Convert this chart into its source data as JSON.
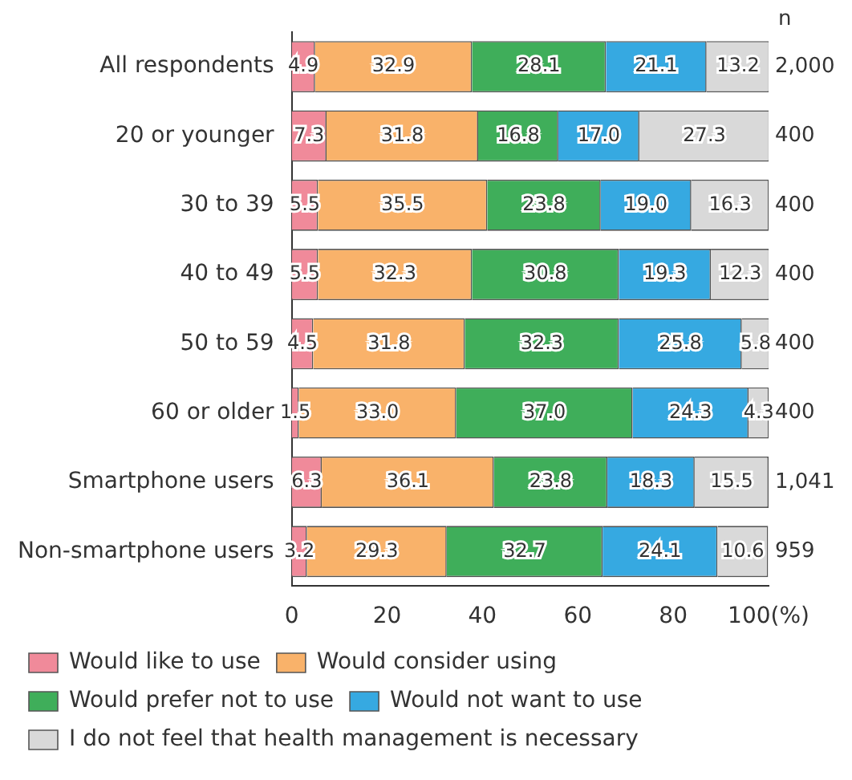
{
  "chart_data": {
    "type": "bar",
    "orientation": "horizontal",
    "stacked": true,
    "categories": [
      "All respondents",
      "20 or younger",
      "30 to 39",
      "40 to 49",
      "50 to 59",
      "60 or older",
      "Smartphone users",
      "Non-smartphone users"
    ],
    "series": [
      {
        "name": "Would like to use",
        "color": "#f08a9a",
        "values": [
          4.9,
          7.3,
          5.5,
          5.5,
          4.5,
          1.5,
          6.3,
          3.2
        ],
        "value_labels": [
          "4.9",
          "7.3",
          "5.5",
          "5.5",
          "4.5",
          "1.5",
          "6.3",
          "3.2"
        ]
      },
      {
        "name": "Would consider using",
        "color": "#f9b26a",
        "values": [
          32.9,
          31.8,
          35.5,
          32.3,
          31.8,
          33.0,
          36.1,
          29.3
        ],
        "value_labels": [
          "32.9",
          "31.8",
          "35.5",
          "32.3",
          "31.8",
          "33.0",
          "36.1",
          "29.3"
        ]
      },
      {
        "name": "Would prefer not to use",
        "color": "#3fae5a",
        "values": [
          28.1,
          16.8,
          23.8,
          30.8,
          32.3,
          37.0,
          23.8,
          32.7
        ],
        "value_labels": [
          "28.1",
          "16.8",
          "23.8",
          "30.8",
          "32.3",
          "37.0",
          "23.8",
          "32.7"
        ]
      },
      {
        "name": "Would not want to use",
        "color": "#36a9e1",
        "values": [
          21.1,
          17.0,
          19.0,
          19.3,
          25.8,
          24.3,
          18.3,
          24.1
        ],
        "value_labels": [
          "21.1",
          "17.0",
          "19.0",
          "19.3",
          "25.8",
          "24.3",
          "18.3",
          "24.1"
        ]
      },
      {
        "name": "I do not feel that health management is necessary",
        "color": "#d9d9d9",
        "values": [
          13.2,
          27.3,
          16.3,
          12.3,
          5.8,
          4.3,
          15.5,
          10.6
        ],
        "value_labels": [
          "13.2",
          "27.3",
          "16.3",
          "12.3",
          "5.8",
          "4.3",
          "15.5",
          "10.6"
        ]
      }
    ],
    "xlim": [
      0,
      100
    ],
    "xticks": [
      0,
      20,
      40,
      60,
      80,
      {
        "value": 100,
        "label": "100(%)"
      }
    ],
    "grid": false,
    "legend": "bottom",
    "annotations": [
      "n",
      "2,000",
      "400",
      "400",
      "400",
      "400",
      "400",
      "1,041",
      "959"
    ]
  }
}
